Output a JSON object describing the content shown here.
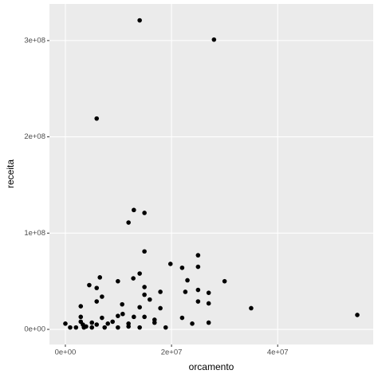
{
  "chart_data": {
    "type": "scatter",
    "x_label": "orcamento",
    "y_label": "receita",
    "color": "#000000",
    "grid": true,
    "xlim": [
      -3000000,
      58000000
    ],
    "ylim": [
      -15700000,
      338000000
    ],
    "xticks": [
      {
        "value": 0,
        "label": "0e+00"
      },
      {
        "value": 20000000,
        "label": "2e+07"
      },
      {
        "value": 40000000,
        "label": "4e+07"
      }
    ],
    "yticks": [
      {
        "value": 0,
        "label": "0e+00"
      },
      {
        "value": 100000000,
        "label": "1e+08"
      },
      {
        "value": 200000000,
        "label": "2e+08"
      },
      {
        "value": 300000000,
        "label": "3e+08"
      }
    ],
    "x": [
      14000000,
      28000000,
      5900000,
      12900000,
      14900000,
      11900000,
      14900000,
      19800000,
      25000000,
      25000000,
      22000000,
      30000000,
      6500000,
      14000000,
      12800000,
      9900000,
      4500000,
      5900000,
      14900000,
      23000000,
      25000000,
      17900000,
      22600000,
      27000000,
      6900000,
      15900000,
      14900000,
      5900000,
      27000000,
      10700000,
      2900000,
      35000000,
      14000000,
      17900000,
      25000000,
      55000000,
      22000000,
      23900000,
      27000000,
      16800000,
      16800000,
      14900000,
      12900000,
      9900000,
      6900000,
      5900000,
      2900000,
      2900000,
      3300000,
      5000000,
      8000000,
      8900000,
      9900000,
      11900000,
      11900000,
      14000000,
      18900000,
      0,
      900000,
      2000000,
      3500000,
      3900000,
      5000000,
      7400000,
      10800000
    ],
    "y": [
      321000000,
      301000000,
      219000000,
      124000000,
      121000000,
      111000000,
      81000000,
      68000000,
      77000000,
      65000000,
      64000000,
      50000000,
      54000000,
      58000000,
      53000000,
      50000000,
      46000000,
      43000000,
      44000000,
      51000000,
      41000000,
      39000000,
      39000000,
      38000000,
      34000000,
      31000000,
      36000000,
      29000000,
      27000000,
      26000000,
      24000000,
      22000000,
      23000000,
      22000000,
      29000000,
      15000000,
      12000000,
      6000000,
      7000000,
      10000000,
      7000000,
      13000000,
      13000000,
      14000000,
      12000000,
      5000000,
      13000000,
      8000000,
      5000000,
      7000000,
      6000000,
      8000000,
      2000000,
      6000000,
      3000000,
      2000000,
      2000000,
      6000000,
      2000000,
      2000000,
      2000000,
      3000000,
      2000000,
      2000000,
      16000000
    ]
  }
}
